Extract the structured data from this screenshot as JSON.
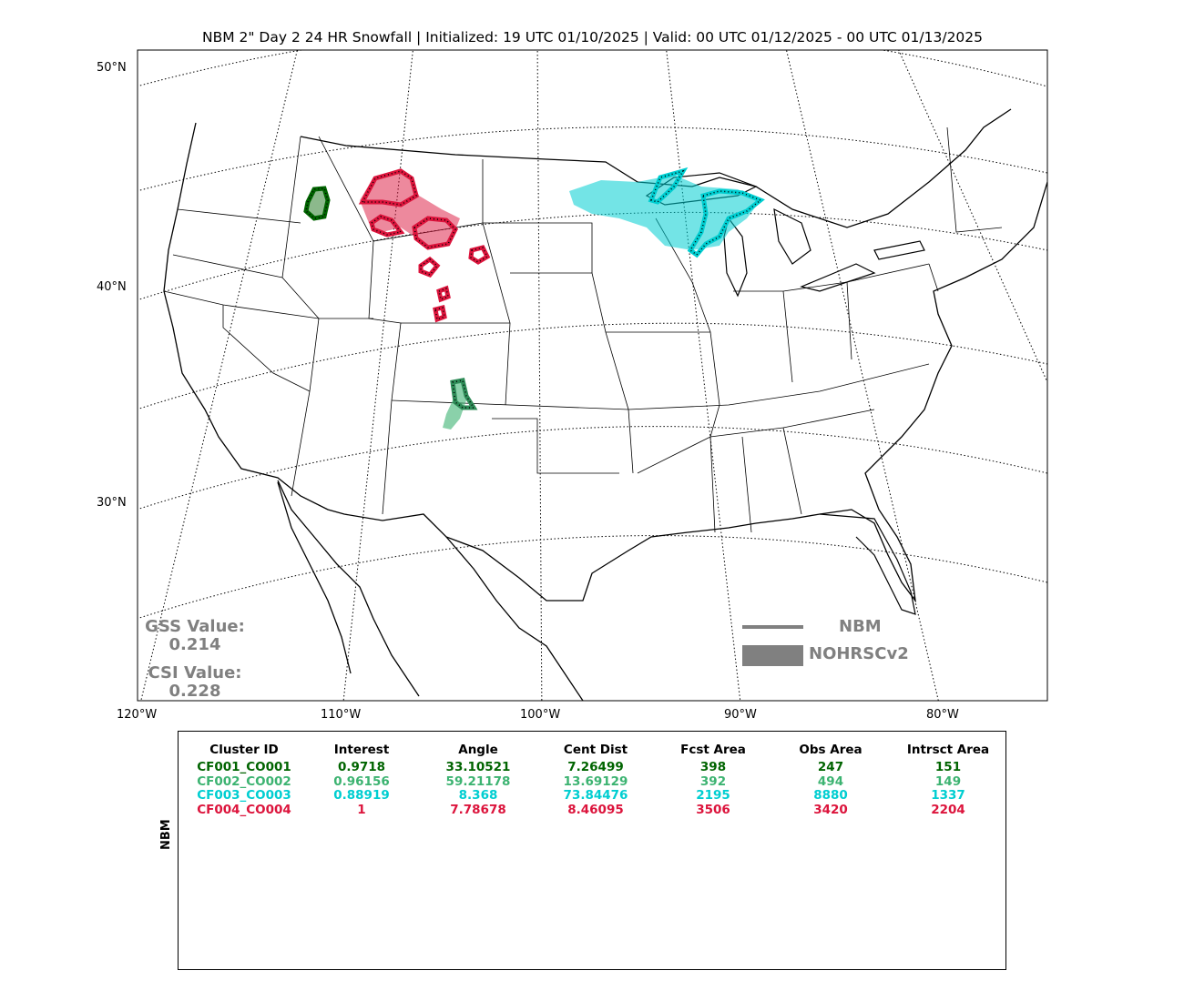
{
  "title": "NBM 2\" Day 2 24 HR Snowfall | Initialized: 19 UTC 01/10/2025 | Valid: 00 UTC 01/12/2025 - 00 UTC 01/13/2025",
  "lat_labels": [
    "50°N",
    "40°N",
    "30°N"
  ],
  "lon_labels": [
    "120°W",
    "110°W",
    "100°W",
    "90°W",
    "80°W"
  ],
  "stats": {
    "gss_label": "GSS Value:",
    "gss_value": "0.214",
    "csi_label": "CSI Value:",
    "csi_value": "0.228"
  },
  "legend": {
    "forecast": "NBM",
    "observed": "NOHRSCv2",
    "line_color": "#808080"
  },
  "table": {
    "side_label": "NBM",
    "headers": [
      "Cluster ID",
      "Interest",
      "Angle",
      "Cent Dist",
      "Fcst Area",
      "Obs Area",
      "Intrsct Area"
    ],
    "rows": [
      {
        "color": "#006400",
        "cells": [
          "CF001_CO001",
          "0.9718",
          "33.10521",
          "7.26499",
          "398",
          "247",
          "151"
        ]
      },
      {
        "color": "#3cb371",
        "cells": [
          "CF002_CO002",
          "0.96156",
          "59.21178",
          "13.69129",
          "392",
          "494",
          "149"
        ]
      },
      {
        "color": "#00ced1",
        "cells": [
          "CF003_CO003",
          "0.88919",
          "8.368",
          "73.84476",
          "2195",
          "8880",
          "1337"
        ]
      },
      {
        "color": "#dc143c",
        "cells": [
          "CF004_CO004",
          "1",
          "7.78678",
          "8.46095",
          "3506",
          "3420",
          "2204"
        ]
      }
    ]
  },
  "cluster_colors": {
    "CF001_CO001": "#006400",
    "CF002_CO002": "#3cb371",
    "CF003_CO003": "#00ced1",
    "CF004_CO004": "#dc143c"
  }
}
